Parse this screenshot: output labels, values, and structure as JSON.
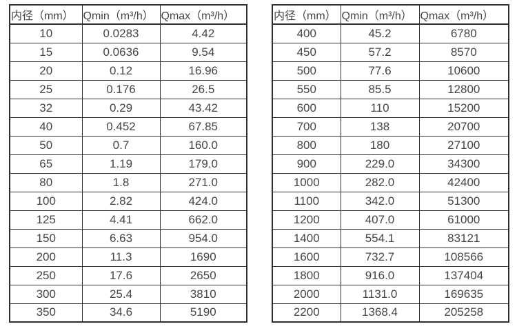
{
  "colors": {
    "background": "#ffffff",
    "border": "#2e2e2e",
    "text": "#454545"
  },
  "table_left": {
    "headers": [
      "内径（mm）",
      "Qmin（m³/h）",
      "Qmax（m³/h）"
    ],
    "rows": [
      [
        "10",
        "0.0283",
        "4.42"
      ],
      [
        "15",
        "0.0636",
        "9.54"
      ],
      [
        "20",
        "0.12",
        "16.96"
      ],
      [
        "25",
        "0.176",
        "26.5"
      ],
      [
        "32",
        "0.29",
        "43.42"
      ],
      [
        "40",
        "0.452",
        "67.85"
      ],
      [
        "50",
        "0.7",
        "160.0"
      ],
      [
        "65",
        "1.19",
        "179.0"
      ],
      [
        "80",
        "1.8",
        "271.0"
      ],
      [
        "100",
        "2.82",
        "424.0"
      ],
      [
        "125",
        "4.41",
        "662.0"
      ],
      [
        "150",
        "6.63",
        "954.0"
      ],
      [
        "200",
        "11.3",
        "1690"
      ],
      [
        "250",
        "17.6",
        "2650"
      ],
      [
        "300",
        "25.4",
        "3810"
      ],
      [
        "350",
        "34.6",
        "5190"
      ]
    ]
  },
  "table_right": {
    "headers": [
      "内径（mm）",
      "Qmin（m³/h）",
      "Qmax（m³/h）"
    ],
    "rows": [
      [
        "400",
        "45.2",
        "6780"
      ],
      [
        "450",
        "57.2",
        "8570"
      ],
      [
        "500",
        "77.6",
        "10600"
      ],
      [
        "550",
        "85.5",
        "12800"
      ],
      [
        "600",
        "110",
        "15200"
      ],
      [
        "700",
        "138",
        "20700"
      ],
      [
        "800",
        "180",
        "27100"
      ],
      [
        "900",
        "229.0",
        "34300"
      ],
      [
        "1000",
        "282.0",
        "42400"
      ],
      [
        "1100",
        "342.0",
        "51300"
      ],
      [
        "1200",
        "407.0",
        "61000"
      ],
      [
        "1400",
        "554.1",
        "83121"
      ],
      [
        "1600",
        "732.7",
        "108566"
      ],
      [
        "1800",
        "916.0",
        "137404"
      ],
      [
        "2000",
        "1131.0",
        "169635"
      ],
      [
        "2200",
        "1368.4",
        "205258"
      ]
    ]
  }
}
